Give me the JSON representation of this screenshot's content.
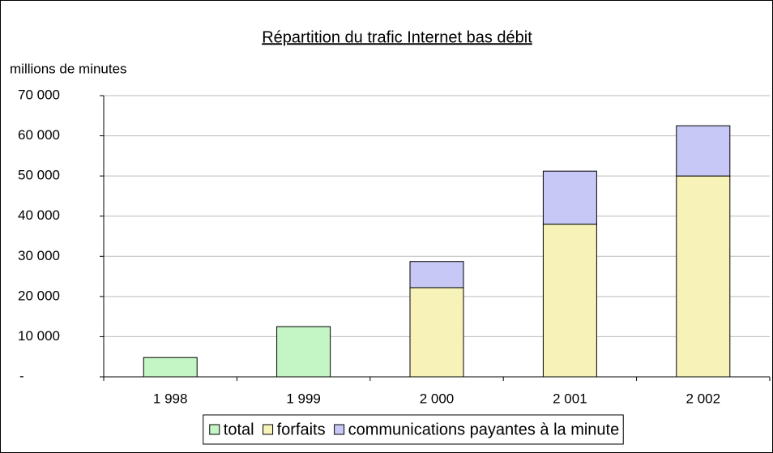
{
  "chart_data": {
    "type": "stacked_bar",
    "title": "Répartition du trafic Internet bas débit",
    "y_label": "millions de minutes",
    "categories": [
      "1 998",
      "1 999",
      "2 000",
      "2 001",
      "2 002"
    ],
    "series": [
      {
        "name": "total",
        "color": "#c4f5c4",
        "values": [
          4800,
          12500,
          null,
          null,
          null
        ]
      },
      {
        "name": "forfaits",
        "color": "#f7f3b8",
        "values": [
          null,
          null,
          22200,
          38000,
          50000
        ]
      },
      {
        "name": "communications payantes à la minute",
        "color": "#c8c8f6",
        "values": [
          null,
          null,
          6500,
          13200,
          12500
        ]
      }
    ],
    "ylim": [
      0,
      70000
    ],
    "yticks": [
      {
        "value": 0,
        "label": "-"
      },
      {
        "value": 10000,
        "label": "10 000"
      },
      {
        "value": 20000,
        "label": "20 000"
      },
      {
        "value": 30000,
        "label": "30 000"
      },
      {
        "value": 40000,
        "label": "40 000"
      },
      {
        "value": 50000,
        "label": "50 000"
      },
      {
        "value": 60000,
        "label": "60 000"
      },
      {
        "value": 70000,
        "label": "70 000"
      }
    ],
    "grid": true,
    "legend": "bottom"
  }
}
